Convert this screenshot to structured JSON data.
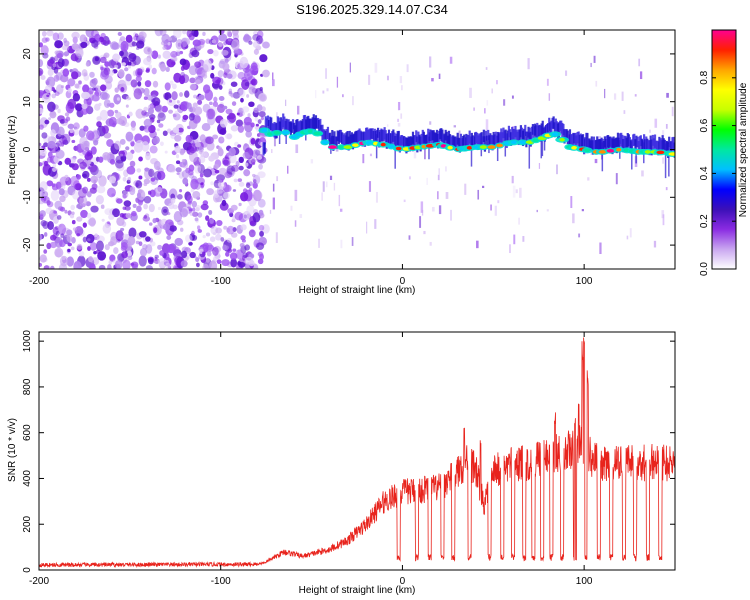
{
  "title": "S196.2025.329.14.07.C34",
  "colors": {
    "frame": "#000000",
    "snr_line": "#e8231c",
    "noise": "#8a2be2",
    "background": "#ffffff"
  },
  "chart_data": [
    {
      "type": "heatmap",
      "name": "spectrogram",
      "title": "S196.2025.329.14.07.C34",
      "xlabel": "Height of straight line (km)",
      "ylabel": "Frequency (Hz)",
      "xlim": [
        -200,
        150
      ],
      "ylim": [
        -25,
        25
      ],
      "x_ticks": [
        -200,
        -100,
        0,
        100
      ],
      "y_ticks": [
        -20,
        -10,
        0,
        10,
        20
      ],
      "tone_track": [
        {
          "x": -76,
          "f": 4
        },
        {
          "x": -72,
          "f": 3
        },
        {
          "x": -66,
          "f": 4
        },
        {
          "x": -60,
          "f": 2.5
        },
        {
          "x": -55,
          "f": 3.5
        },
        {
          "x": -48,
          "f": 4
        },
        {
          "x": -44,
          "f": 2
        },
        {
          "x": -40,
          "f": 0.5
        },
        {
          "x": -30,
          "f": 0.5
        },
        {
          "x": -20,
          "f": 1.5
        },
        {
          "x": -10,
          "f": 1
        },
        {
          "x": 0,
          "f": 0
        },
        {
          "x": 10,
          "f": 0.5
        },
        {
          "x": 20,
          "f": 1
        },
        {
          "x": 30,
          "f": 0
        },
        {
          "x": 40,
          "f": 0.5
        },
        {
          "x": 50,
          "f": 0.5
        },
        {
          "x": 60,
          "f": 1.5
        },
        {
          "x": 70,
          "f": 1.5
        },
        {
          "x": 78,
          "f": 2.5
        },
        {
          "x": 83,
          "f": 3.5
        },
        {
          "x": 88,
          "f": 2
        },
        {
          "x": 92,
          "f": 0.5
        },
        {
          "x": 100,
          "f": 0
        },
        {
          "x": 105,
          "f": -0.5
        },
        {
          "x": 110,
          "f": -0.5
        },
        {
          "x": 120,
          "f": 0
        },
        {
          "x": 130,
          "f": -0.5
        },
        {
          "x": 140,
          "f": -0.5
        },
        {
          "x": 150,
          "f": -1
        }
      ],
      "colorbar": {
        "label": "Normalized spectral amplitude",
        "range": [
          0,
          1
        ],
        "ticks": [
          0.0,
          0.2,
          0.4,
          0.6,
          0.8
        ],
        "colors": [
          "#ffffff",
          "#c9a6f0",
          "#8a2be2",
          "#3b10b8",
          "#0000ff",
          "#00c0ff",
          "#00e8a0",
          "#00ff00",
          "#c8ff00",
          "#ffff00",
          "#ffa500",
          "#ff2000",
          "#ff0090"
        ]
      }
    },
    {
      "type": "line",
      "name": "snr",
      "xlabel": "Height of straight line (km)",
      "ylabel": "SNR (10 * v/v)",
      "xlim": [
        -200,
        150
      ],
      "ylim": [
        0,
        1040
      ],
      "x_ticks": [
        -200,
        -100,
        0,
        100
      ],
      "y_ticks": [
        0,
        200,
        400,
        600,
        800,
        1000
      ],
      "envelope": [
        {
          "x": -200,
          "y": 22
        },
        {
          "x": -80,
          "y": 25
        },
        {
          "x": -75,
          "y": 35
        },
        {
          "x": -65,
          "y": 80
        },
        {
          "x": -55,
          "y": 60
        },
        {
          "x": -40,
          "y": 90
        },
        {
          "x": -30,
          "y": 130
        },
        {
          "x": -20,
          "y": 200
        },
        {
          "x": -10,
          "y": 300
        },
        {
          "x": 0,
          "y": 340
        },
        {
          "x": 10,
          "y": 350
        },
        {
          "x": 20,
          "y": 360
        },
        {
          "x": 30,
          "y": 420
        },
        {
          "x": 35,
          "y": 480
        },
        {
          "x": 40,
          "y": 450
        },
        {
          "x": 45,
          "y": 280
        },
        {
          "x": 50,
          "y": 430
        },
        {
          "x": 60,
          "y": 460
        },
        {
          "x": 70,
          "y": 470
        },
        {
          "x": 80,
          "y": 500
        },
        {
          "x": 90,
          "y": 520
        },
        {
          "x": 95,
          "y": 520
        },
        {
          "x": 100,
          "y": 560
        },
        {
          "x": 105,
          "y": 480
        },
        {
          "x": 110,
          "y": 470
        },
        {
          "x": 120,
          "y": 460
        },
        {
          "x": 130,
          "y": 470
        },
        {
          "x": 140,
          "y": 470
        },
        {
          "x": 150,
          "y": 465
        }
      ],
      "dropouts": [
        -2,
        8,
        15,
        22,
        28,
        37,
        48,
        55,
        61,
        67,
        72,
        77,
        82,
        88,
        95,
        101,
        108,
        115,
        122,
        128,
        135,
        142
      ],
      "spikes": [
        {
          "x": 34,
          "y": 640
        },
        {
          "x": 43,
          "y": 580
        },
        {
          "x": 84,
          "y": 690
        },
        {
          "x": 95,
          "y": 670
        },
        {
          "x": 97,
          "y": 760
        },
        {
          "x": 99,
          "y": 1000
        },
        {
          "x": 100,
          "y": 1040
        },
        {
          "x": 102,
          "y": 880
        }
      ]
    }
  ]
}
